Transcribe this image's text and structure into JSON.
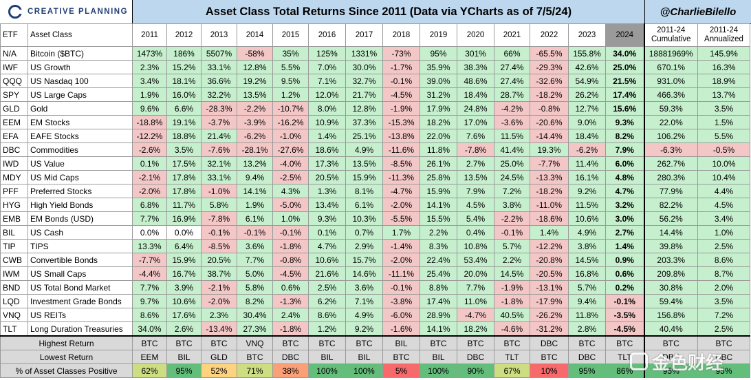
{
  "header": {
    "logo_text": "CREATIVE PLANNING",
    "title": "Asset Class Total Returns Since 2011 (Data via YCharts as of 7/5/24)",
    "handle": "@CharlieBilello"
  },
  "watermark_text": "金色财经",
  "colors": {
    "positive": "#c6efce",
    "negative": "#f4c7c7",
    "title_bg": "#bdd7ee",
    "ytd_header": "#9a9a9a",
    "footer_bg": "#d9d9d9"
  },
  "chart_data": {
    "type": "table",
    "columns": [
      "ETF",
      "Asset Class",
      "2011",
      "2012",
      "2013",
      "2014",
      "2015",
      "2016",
      "2017",
      "2018",
      "2019",
      "2020",
      "2021",
      "2022",
      "2023",
      "2024",
      "2011-24 Cumulative",
      "2011-24 Annualized"
    ],
    "rows": [
      {
        "etf": "N/A",
        "name": "Bitcoin ($BTC)",
        "values": [
          "1473%",
          "186%",
          "5507%",
          "-58%",
          "35%",
          "125%",
          "1331%",
          "-73%",
          "95%",
          "301%",
          "66%",
          "-65.5%",
          "155.8%",
          "34.0%",
          "18881969%",
          "145.9%"
        ]
      },
      {
        "etf": "IWF",
        "name": "US Growth",
        "values": [
          "2.3%",
          "15.2%",
          "33.1%",
          "12.8%",
          "5.5%",
          "7.0%",
          "30.0%",
          "-1.7%",
          "35.9%",
          "38.3%",
          "27.4%",
          "-29.3%",
          "42.6%",
          "25.0%",
          "670.1%",
          "16.3%"
        ]
      },
      {
        "etf": "QQQ",
        "name": "US Nasdaq 100",
        "values": [
          "3.4%",
          "18.1%",
          "36.6%",
          "19.2%",
          "9.5%",
          "7.1%",
          "32.7%",
          "-0.1%",
          "39.0%",
          "48.6%",
          "27.4%",
          "-32.6%",
          "54.9%",
          "21.5%",
          "931.0%",
          "18.9%"
        ]
      },
      {
        "etf": "SPY",
        "name": "US Large Caps",
        "values": [
          "1.9%",
          "16.0%",
          "32.2%",
          "13.5%",
          "1.2%",
          "12.0%",
          "21.7%",
          "-4.5%",
          "31.2%",
          "18.4%",
          "28.7%",
          "-18.2%",
          "26.2%",
          "17.4%",
          "466.3%",
          "13.7%"
        ]
      },
      {
        "etf": "GLD",
        "name": "Gold",
        "values": [
          "9.6%",
          "6.6%",
          "-28.3%",
          "-2.2%",
          "-10.7%",
          "8.0%",
          "12.8%",
          "-1.9%",
          "17.9%",
          "24.8%",
          "-4.2%",
          "-0.8%",
          "12.7%",
          "15.6%",
          "59.3%",
          "3.5%"
        ]
      },
      {
        "etf": "EEM",
        "name": "EM Stocks",
        "values": [
          "-18.8%",
          "19.1%",
          "-3.7%",
          "-3.9%",
          "-16.2%",
          "10.9%",
          "37.3%",
          "-15.3%",
          "18.2%",
          "17.0%",
          "-3.6%",
          "-20.6%",
          "9.0%",
          "9.3%",
          "22.0%",
          "1.5%"
        ]
      },
      {
        "etf": "EFA",
        "name": "EAFE Stocks",
        "values": [
          "-12.2%",
          "18.8%",
          "21.4%",
          "-6.2%",
          "-1.0%",
          "1.4%",
          "25.1%",
          "-13.8%",
          "22.0%",
          "7.6%",
          "11.5%",
          "-14.4%",
          "18.4%",
          "8.2%",
          "106.2%",
          "5.5%"
        ]
      },
      {
        "etf": "DBC",
        "name": "Commodities",
        "values": [
          "-2.6%",
          "3.5%",
          "-7.6%",
          "-28.1%",
          "-27.6%",
          "18.6%",
          "4.9%",
          "-11.6%",
          "11.8%",
          "-7.8%",
          "41.4%",
          "19.3%",
          "-6.2%",
          "7.9%",
          "-6.3%",
          "-0.5%"
        ]
      },
      {
        "etf": "IWD",
        "name": "US Value",
        "values": [
          "0.1%",
          "17.5%",
          "32.1%",
          "13.2%",
          "-4.0%",
          "17.3%",
          "13.5%",
          "-8.5%",
          "26.1%",
          "2.7%",
          "25.0%",
          "-7.7%",
          "11.4%",
          "6.0%",
          "262.7%",
          "10.0%"
        ]
      },
      {
        "etf": "MDY",
        "name": "US Mid Caps",
        "values": [
          "-2.1%",
          "17.8%",
          "33.1%",
          "9.4%",
          "-2.5%",
          "20.5%",
          "15.9%",
          "-11.3%",
          "25.8%",
          "13.5%",
          "24.5%",
          "-13.3%",
          "16.1%",
          "4.8%",
          "280.3%",
          "10.4%"
        ]
      },
      {
        "etf": "PFF",
        "name": "Preferred Stocks",
        "values": [
          "-2.0%",
          "17.8%",
          "-1.0%",
          "14.1%",
          "4.3%",
          "1.3%",
          "8.1%",
          "-4.7%",
          "15.9%",
          "7.9%",
          "7.2%",
          "-18.2%",
          "9.2%",
          "4.7%",
          "77.9%",
          "4.4%"
        ]
      },
      {
        "etf": "HYG",
        "name": "High Yield Bonds",
        "values": [
          "6.8%",
          "11.7%",
          "5.8%",
          "1.9%",
          "-5.0%",
          "13.4%",
          "6.1%",
          "-2.0%",
          "14.1%",
          "4.5%",
          "3.8%",
          "-11.0%",
          "11.5%",
          "3.2%",
          "82.2%",
          "4.5%"
        ]
      },
      {
        "etf": "EMB",
        "name": "EM Bonds (USD)",
        "values": [
          "7.7%",
          "16.9%",
          "-7.8%",
          "6.1%",
          "1.0%",
          "9.3%",
          "10.3%",
          "-5.5%",
          "15.5%",
          "5.4%",
          "-2.2%",
          "-18.6%",
          "10.6%",
          "3.0%",
          "56.2%",
          "3.4%"
        ]
      },
      {
        "etf": "BIL",
        "name": "US Cash",
        "values": [
          "0.0%",
          "0.0%",
          "-0.1%",
          "-0.1%",
          "-0.1%",
          "0.1%",
          "0.7%",
          "1.7%",
          "2.2%",
          "0.4%",
          "-0.1%",
          "1.4%",
          "4.9%",
          "2.7%",
          "14.4%",
          "1.0%"
        ]
      },
      {
        "etf": "TIP",
        "name": "TIPS",
        "values": [
          "13.3%",
          "6.4%",
          "-8.5%",
          "3.6%",
          "-1.8%",
          "4.7%",
          "2.9%",
          "-1.4%",
          "8.3%",
          "10.8%",
          "5.7%",
          "-12.2%",
          "3.8%",
          "1.4%",
          "39.8%",
          "2.5%"
        ]
      },
      {
        "etf": "CWB",
        "name": "Convertible Bonds",
        "values": [
          "-7.7%",
          "15.9%",
          "20.5%",
          "7.7%",
          "-0.8%",
          "10.6%",
          "15.7%",
          "-2.0%",
          "22.4%",
          "53.4%",
          "2.2%",
          "-20.8%",
          "14.5%",
          "0.9%",
          "203.3%",
          "8.6%"
        ]
      },
      {
        "etf": "IWM",
        "name": "US Small Caps",
        "values": [
          "-4.4%",
          "16.7%",
          "38.7%",
          "5.0%",
          "-4.5%",
          "21.6%",
          "14.6%",
          "-11.1%",
          "25.4%",
          "20.0%",
          "14.5%",
          "-20.5%",
          "16.8%",
          "0.6%",
          "209.8%",
          "8.7%"
        ]
      },
      {
        "etf": "BND",
        "name": "US Total Bond Market",
        "values": [
          "7.7%",
          "3.9%",
          "-2.1%",
          "5.8%",
          "0.6%",
          "2.5%",
          "3.6%",
          "-0.1%",
          "8.8%",
          "7.7%",
          "-1.9%",
          "-13.1%",
          "5.7%",
          "0.2%",
          "30.8%",
          "2.0%"
        ]
      },
      {
        "etf": "LQD",
        "name": "Investment Grade Bonds",
        "values": [
          "9.7%",
          "10.6%",
          "-2.0%",
          "8.2%",
          "-1.3%",
          "6.2%",
          "7.1%",
          "-3.8%",
          "17.4%",
          "11.0%",
          "-1.8%",
          "-17.9%",
          "9.4%",
          "-0.1%",
          "59.4%",
          "3.5%"
        ]
      },
      {
        "etf": "VNQ",
        "name": "US REITs",
        "values": [
          "8.6%",
          "17.6%",
          "2.3%",
          "30.4%",
          "2.4%",
          "8.6%",
          "4.9%",
          "-6.0%",
          "28.9%",
          "-4.7%",
          "40.5%",
          "-26.2%",
          "11.8%",
          "-3.5%",
          "156.8%",
          "7.2%"
        ]
      },
      {
        "etf": "TLT",
        "name": "Long Duration Treasuries",
        "values": [
          "34.0%",
          "2.6%",
          "-13.4%",
          "27.3%",
          "-1.8%",
          "1.2%",
          "9.2%",
          "-1.6%",
          "14.1%",
          "18.2%",
          "-4.6%",
          "-31.2%",
          "2.8%",
          "-4.5%",
          "40.4%",
          "2.5%"
        ]
      }
    ],
    "footer": [
      {
        "label": "Highest Return",
        "values": [
          "BTC",
          "BTC",
          "BTC",
          "VNQ",
          "BTC",
          "BTC",
          "BTC",
          "BIL",
          "BTC",
          "BTC",
          "BTC",
          "DBC",
          "BTC",
          "BTC",
          "BTC",
          "BTC"
        ]
      },
      {
        "label": "Lowest Return",
        "values": [
          "EEM",
          "BIL",
          "GLD",
          "BTC",
          "DBC",
          "BIL",
          "BIL",
          "BTC",
          "BIL",
          "DBC",
          "TLT",
          "BTC",
          "DBC",
          "TLT",
          "DBC",
          "DBC"
        ]
      },
      {
        "label": "% of Asset Classes Positive",
        "values": [
          "62%",
          "95%",
          "52%",
          "71%",
          "38%",
          "100%",
          "100%",
          "5%",
          "100%",
          "90%",
          "67%",
          "10%",
          "95%",
          "86%",
          "95%",
          "95%"
        ]
      }
    ]
  }
}
